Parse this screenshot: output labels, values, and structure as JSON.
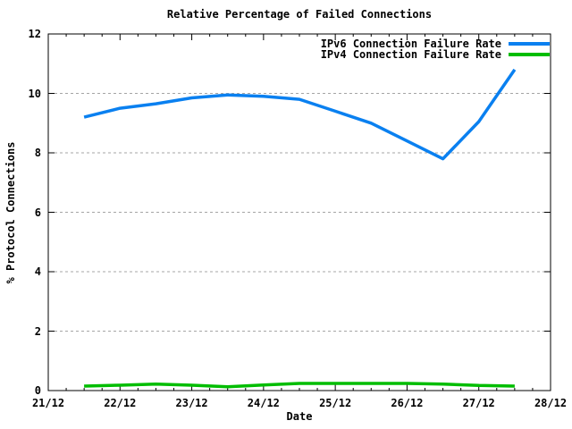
{
  "title": "Relative Percentage of Failed Connections",
  "axes": {
    "x_label": "Date",
    "y_label": "% Protocol Connections"
  },
  "legend": {
    "items": [
      {
        "label": "IPv6 Connection Failure Rate",
        "color": "#0a80f0"
      },
      {
        "label": "IPv4 Connection Failure Rate",
        "color": "#00bd00"
      }
    ]
  },
  "colors": {
    "background": "#ffffff",
    "border": "#000000",
    "grid": "#a5a5a5",
    "text": "#000000",
    "ipv6_line": "#0a80f0",
    "ipv4_line": "#00bd00"
  },
  "chart_data": {
    "type": "line",
    "title": "Relative Percentage of Failed Connections",
    "xlabel": "Date",
    "ylabel": "% Protocol Connections",
    "x_unit": "days after 21/12",
    "xlim": [
      0,
      7
    ],
    "ylim": [
      0,
      12
    ],
    "x_tick_values": [
      0,
      1,
      2,
      3,
      4,
      5,
      6,
      7
    ],
    "x_tick_labels": [
      "21/12",
      "22/12",
      "23/12",
      "24/12",
      "25/12",
      "26/12",
      "27/12",
      "28/12"
    ],
    "x_minor_tick_step": 0.25,
    "y_tick_values": [
      0,
      2,
      4,
      6,
      8,
      10,
      12
    ],
    "y_tick_labels": [
      "0",
      "2",
      "4",
      "6",
      "8",
      "10",
      "12"
    ],
    "y_grid_values": [
      2,
      4,
      6,
      8,
      10
    ],
    "grid_style": "horizontal-dashed",
    "legend_position": "top-right-inside",
    "x": [
      0.5,
      1.0,
      1.5,
      2.0,
      2.5,
      3.0,
      3.5,
      4.0,
      4.5,
      5.0,
      5.5,
      6.0,
      6.5
    ],
    "series": [
      {
        "name": "IPv6 Connection Failure Rate",
        "color": "#0a80f0",
        "values": [
          9.2,
          9.5,
          9.65,
          9.85,
          9.95,
          9.9,
          9.8,
          9.4,
          9.0,
          8.4,
          7.8,
          9.05,
          10.8
        ]
      },
      {
        "name": "IPv4 Connection Failure Rate",
        "color": "#00bd00",
        "values": [
          0.15,
          0.18,
          0.22,
          0.18,
          0.13,
          0.19,
          0.24,
          0.24,
          0.24,
          0.24,
          0.22,
          0.17,
          0.15
        ]
      }
    ]
  }
}
